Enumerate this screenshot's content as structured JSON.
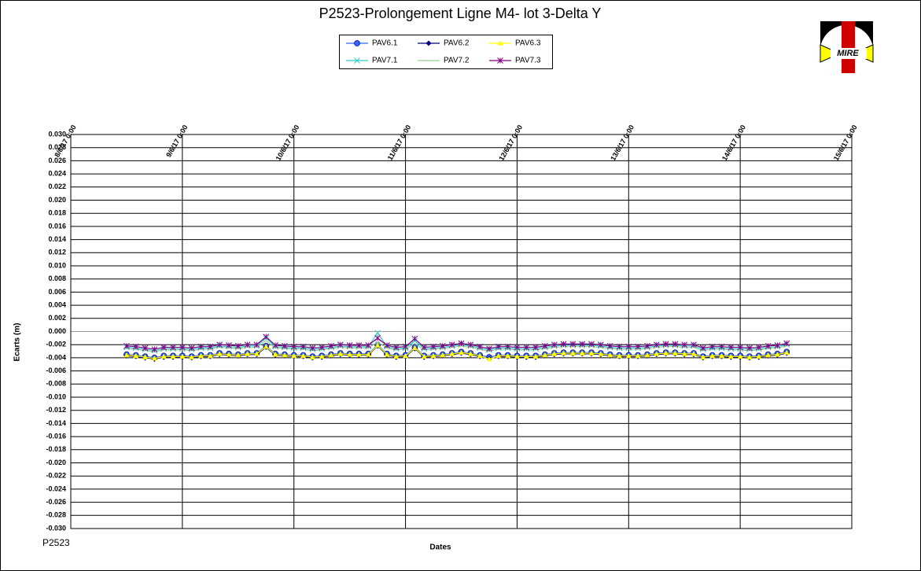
{
  "chart_data": {
    "type": "line",
    "title": "P2523-Prolongement  Ligne  M4- lot 3-Delta Y",
    "y_label": "Ecarts (m)",
    "x_label": "Dates",
    "note": "P2523",
    "logo_text": "MIRE",
    "grid": true,
    "xlim": [
      "8/6/17 0:00",
      "15/6/17 0:00"
    ],
    "xticks": [
      "8/6/17 0:00",
      "9/6/17 0:00",
      "10/6/17 0:00",
      "11/6/17 0:00",
      "12/6/17 0:00",
      "13/6/17 0:00",
      "14/6/17 0:00",
      "15/6/17 0:00"
    ],
    "ylim": [
      -0.03,
      0.03
    ],
    "yticks": [
      {
        "value": 0.03,
        "label": "0.030"
      },
      {
        "value": 0.028,
        "label": "0.028"
      },
      {
        "value": 0.026,
        "label": "0.026"
      },
      {
        "value": 0.024,
        "label": "0.024"
      },
      {
        "value": 0.022,
        "label": "0.022"
      },
      {
        "value": 0.02,
        "label": "0.020"
      },
      {
        "value": 0.018,
        "label": "0.018"
      },
      {
        "value": 0.016,
        "label": "0.016"
      },
      {
        "value": 0.014,
        "label": "0.014"
      },
      {
        "value": 0.012,
        "label": "0.012"
      },
      {
        "value": 0.01,
        "label": "0.010"
      },
      {
        "value": 0.008,
        "label": "0.008"
      },
      {
        "value": 0.006,
        "label": "0.006"
      },
      {
        "value": 0.004,
        "label": "0.004"
      },
      {
        "value": 0.002,
        "label": "0.002"
      },
      {
        "value": 0,
        "label": "0.000"
      },
      {
        "value": -0.002,
        "label": "-0.002"
      },
      {
        "value": -0.004,
        "label": "-0.004"
      },
      {
        "value": -0.006,
        "label": "-0.006"
      },
      {
        "value": -0.008,
        "label": "-0.008"
      },
      {
        "value": -0.01,
        "label": "-0.010"
      },
      {
        "value": -0.012,
        "label": "-0.012"
      },
      {
        "value": -0.014,
        "label": "-0.014"
      },
      {
        "value": -0.016,
        "label": "-0.016"
      },
      {
        "value": -0.018,
        "label": "-0.018"
      },
      {
        "value": -0.02,
        "label": "-0.020"
      },
      {
        "value": -0.022,
        "label": "-0.022"
      },
      {
        "value": -0.024,
        "label": "-0.024"
      },
      {
        "value": -0.026,
        "label": "-0.026"
      },
      {
        "value": -0.028,
        "label": "-0.028"
      },
      {
        "value": -0.03,
        "label": "-0.030"
      }
    ],
    "x": [
      "8/6/17 12:00",
      "8/6/17 14:00",
      "8/6/17 16:00",
      "8/6/17 18:00",
      "8/6/17 20:00",
      "8/6/17 22:00",
      "9/6/17 0:00",
      "9/6/17 2:00",
      "9/6/17 4:00",
      "9/6/17 6:00",
      "9/6/17 8:00",
      "9/6/17 10:00",
      "9/6/17 12:00",
      "9/6/17 14:00",
      "9/6/17 16:00",
      "9/6/17 18:00",
      "9/6/17 20:00",
      "9/6/17 22:00",
      "10/6/17 0:00",
      "10/6/17 2:00",
      "10/6/17 4:00",
      "10/6/17 6:00",
      "10/6/17 8:00",
      "10/6/17 10:00",
      "10/6/17 12:00",
      "10/6/17 14:00",
      "10/6/17 16:00",
      "10/6/17 18:00",
      "10/6/17 20:00",
      "10/6/17 22:00",
      "11/6/17 0:00",
      "11/6/17 2:00",
      "11/6/17 4:00",
      "11/6/17 6:00",
      "11/6/17 8:00",
      "11/6/17 10:00",
      "11/6/17 12:00",
      "11/6/17 14:00",
      "11/6/17 16:00",
      "11/6/17 18:00",
      "11/6/17 20:00",
      "11/6/17 22:00",
      "12/6/17 0:00",
      "12/6/17 2:00",
      "12/6/17 4:00",
      "12/6/17 6:00",
      "12/6/17 8:00",
      "12/6/17 10:00",
      "12/6/17 12:00",
      "12/6/17 14:00",
      "12/6/17 16:00",
      "12/6/17 18:00",
      "12/6/17 20:00",
      "12/6/17 22:00",
      "13/6/17 0:00",
      "13/6/17 2:00",
      "13/6/17 4:00",
      "13/6/17 6:00",
      "13/6/17 8:00",
      "13/6/17 10:00",
      "13/6/17 12:00",
      "13/6/17 14:00",
      "13/6/17 16:00",
      "13/6/17 18:00",
      "13/6/17 20:00",
      "13/6/17 22:00",
      "14/6/17 0:00",
      "14/6/17 2:00",
      "14/6/17 4:00",
      "14/6/17 6:00",
      "14/6/17 8:00",
      "14/6/17 10:00"
    ],
    "series": [
      {
        "name": "PAV6.1",
        "color": "#3366ff",
        "marker": "circle",
        "values": [
          -0.0035,
          -0.0036,
          -0.0038,
          -0.004,
          -0.0037,
          -0.0037,
          -0.0037,
          -0.0038,
          -0.0036,
          -0.0036,
          -0.0033,
          -0.0034,
          -0.0035,
          -0.0033,
          -0.0033,
          -0.0022,
          -0.0034,
          -0.0035,
          -0.0036,
          -0.0036,
          -0.0038,
          -0.0037,
          -0.0035,
          -0.0033,
          -0.0034,
          -0.0034,
          -0.0034,
          -0.002,
          -0.0034,
          -0.0037,
          -0.0036,
          -0.0024,
          -0.0037,
          -0.0036,
          -0.0035,
          -0.0033,
          -0.0031,
          -0.0033,
          -0.0036,
          -0.0039,
          -0.0036,
          -0.0036,
          -0.0037,
          -0.0037,
          -0.0037,
          -0.0035,
          -0.0033,
          -0.0032,
          -0.0032,
          -0.0032,
          -0.0032,
          -0.0033,
          -0.0035,
          -0.0036,
          -0.0036,
          -0.0036,
          -0.0035,
          -0.0033,
          -0.0032,
          -0.0032,
          -0.0033,
          -0.0033,
          -0.0038,
          -0.0036,
          -0.0036,
          -0.0037,
          -0.0037,
          -0.0038,
          -0.0037,
          -0.0035,
          -0.0034,
          -0.0031
        ]
      },
      {
        "name": "PAV6.2",
        "color": "#000080",
        "marker": "diamond",
        "values": [
          -0.0037,
          -0.0038,
          -0.004,
          -0.0042,
          -0.0039,
          -0.0039,
          -0.0039,
          -0.004,
          -0.0038,
          -0.0038,
          -0.0035,
          -0.0036,
          -0.0037,
          -0.0035,
          -0.0035,
          -0.0024,
          -0.0036,
          -0.0037,
          -0.0038,
          -0.0038,
          -0.004,
          -0.0039,
          -0.0037,
          -0.0035,
          -0.0036,
          -0.0036,
          -0.0036,
          -0.0022,
          -0.0036,
          -0.0039,
          -0.0038,
          -0.0026,
          -0.0039,
          -0.0038,
          -0.0037,
          -0.0035,
          -0.0033,
          -0.0035,
          -0.0038,
          -0.0041,
          -0.0038,
          -0.0038,
          -0.0039,
          -0.0039,
          -0.0039,
          -0.0037,
          -0.0035,
          -0.0034,
          -0.0034,
          -0.0034,
          -0.0034,
          -0.0035,
          -0.0037,
          -0.0038,
          -0.0038,
          -0.0038,
          -0.0037,
          -0.0035,
          -0.0034,
          -0.0034,
          -0.0035,
          -0.0035,
          -0.004,
          -0.0038,
          -0.0038,
          -0.0039,
          -0.0039,
          -0.004,
          -0.0039,
          -0.0037,
          -0.0036,
          -0.0033
        ]
      },
      {
        "name": "PAV6.3",
        "color": "#ffff00",
        "marker": "triangle",
        "values": [
          -0.0036,
          -0.0037,
          -0.0039,
          -0.0041,
          -0.0038,
          -0.0038,
          -0.0038,
          -0.0039,
          -0.0037,
          -0.0037,
          -0.0034,
          -0.0035,
          -0.0036,
          -0.0034,
          -0.0034,
          -0.0023,
          -0.0035,
          -0.0036,
          -0.0037,
          -0.0037,
          -0.0039,
          -0.0038,
          -0.0036,
          -0.0034,
          -0.0035,
          -0.0035,
          -0.0035,
          -0.0021,
          -0.0035,
          -0.0038,
          -0.0037,
          -0.0025,
          -0.0038,
          -0.0037,
          -0.0036,
          -0.0034,
          -0.0032,
          -0.0034,
          -0.0037,
          -0.0042,
          -0.0037,
          -0.0037,
          -0.0038,
          -0.0038,
          -0.0038,
          -0.0036,
          -0.0034,
          -0.0033,
          -0.0033,
          -0.0033,
          -0.0033,
          -0.0034,
          -0.0036,
          -0.0037,
          -0.0037,
          -0.0037,
          -0.0036,
          -0.0034,
          -0.0033,
          -0.0033,
          -0.0034,
          -0.0034,
          -0.0039,
          -0.0037,
          -0.0037,
          -0.0038,
          -0.0038,
          -0.0039,
          -0.0038,
          -0.0036,
          -0.0035,
          -0.0032
        ]
      },
      {
        "name": "PAV7.1",
        "color": "#33cccc",
        "marker": "x",
        "values": [
          -0.0024,
          -0.0025,
          -0.0027,
          -0.0029,
          -0.0026,
          -0.0026,
          -0.0026,
          -0.0027,
          -0.0025,
          -0.0025,
          -0.0022,
          -0.0023,
          -0.0024,
          -0.0022,
          -0.0022,
          -0.001,
          -0.0023,
          -0.0024,
          -0.0025,
          -0.0025,
          -0.0027,
          -0.0026,
          -0.0024,
          -0.0022,
          -0.0023,
          -0.0023,
          -0.0023,
          -0.0002,
          -0.0023,
          -0.0026,
          -0.0025,
          -0.0014,
          -0.0026,
          -0.0025,
          -0.0024,
          -0.0022,
          -0.002,
          -0.0022,
          -0.0025,
          -0.0028,
          -0.0025,
          -0.0025,
          -0.0026,
          -0.0026,
          -0.0026,
          -0.0024,
          -0.0022,
          -0.0021,
          -0.0021,
          -0.0021,
          -0.0021,
          -0.0022,
          -0.0024,
          -0.0025,
          -0.0025,
          -0.0025,
          -0.0024,
          -0.0022,
          -0.0021,
          -0.0021,
          -0.0022,
          -0.0022,
          -0.0027,
          -0.0025,
          -0.0025,
          -0.0026,
          -0.0026,
          -0.0027,
          -0.0026,
          -0.0024,
          -0.0023,
          -0.002
        ]
      },
      {
        "name": "PAV7.2",
        "color": "#99cc99",
        "marker": "none",
        "values": [
          -0.0026,
          -0.0027,
          -0.0029,
          -0.0031,
          -0.0028,
          -0.0028,
          -0.0028,
          -0.0029,
          -0.0027,
          -0.0027,
          -0.0024,
          -0.0025,
          -0.0026,
          -0.0024,
          -0.0024,
          -0.0014,
          -0.0025,
          -0.0026,
          -0.0027,
          -0.0027,
          -0.0029,
          -0.0028,
          -0.0026,
          -0.0024,
          -0.0025,
          -0.0025,
          -0.0025,
          -0.0016,
          -0.0025,
          -0.0028,
          -0.0027,
          -0.0018,
          -0.0028,
          -0.0027,
          -0.0026,
          -0.0024,
          -0.0022,
          -0.0024,
          -0.0027,
          -0.003,
          -0.0027,
          -0.0027,
          -0.0028,
          -0.0028,
          -0.0028,
          -0.0026,
          -0.0024,
          -0.0023,
          -0.0023,
          -0.0023,
          -0.0023,
          -0.0024,
          -0.0026,
          -0.0027,
          -0.0027,
          -0.0027,
          -0.0026,
          -0.0024,
          -0.0023,
          -0.0023,
          -0.0024,
          -0.0024,
          -0.0029,
          -0.0027,
          -0.0027,
          -0.0028,
          -0.0028,
          -0.0029,
          -0.0028,
          -0.0026,
          -0.0025,
          -0.0022
        ]
      },
      {
        "name": "PAV7.3",
        "color": "#800080",
        "marker": "star",
        "values": [
          -0.0022,
          -0.0023,
          -0.0025,
          -0.0027,
          -0.0024,
          -0.0024,
          -0.0024,
          -0.0025,
          -0.0023,
          -0.0023,
          -0.002,
          -0.0021,
          -0.0022,
          -0.002,
          -0.002,
          -0.0008,
          -0.0021,
          -0.0022,
          -0.0023,
          -0.0023,
          -0.0025,
          -0.0024,
          -0.0022,
          -0.002,
          -0.0021,
          -0.0021,
          -0.0021,
          -0.001,
          -0.0021,
          -0.0024,
          -0.0023,
          -0.0011,
          -0.0024,
          -0.0023,
          -0.0022,
          -0.002,
          -0.0018,
          -0.002,
          -0.0023,
          -0.0026,
          -0.0023,
          -0.0023,
          -0.0024,
          -0.0024,
          -0.0024,
          -0.0022,
          -0.002,
          -0.0019,
          -0.0019,
          -0.0019,
          -0.0019,
          -0.002,
          -0.0022,
          -0.0023,
          -0.0023,
          -0.0023,
          -0.0022,
          -0.002,
          -0.0019,
          -0.0019,
          -0.002,
          -0.002,
          -0.0025,
          -0.0023,
          -0.0023,
          -0.0024,
          -0.0024,
          -0.0025,
          -0.0024,
          -0.0022,
          -0.0021,
          -0.0018
        ]
      }
    ]
  }
}
